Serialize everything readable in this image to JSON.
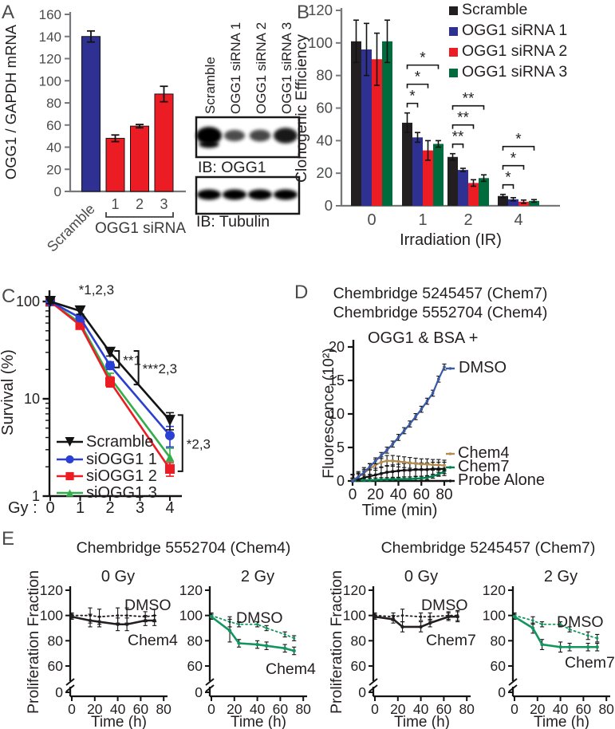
{
  "western_blot": {
    "lane_labels": [
      "Scramble",
      "OGG1 siRNA 1",
      "OGG1 siRNA 2",
      "OGG1 siRNA 3"
    ],
    "blots": [
      {
        "label": "IB: OGG1",
        "band_intensities": [
          1.0,
          0.4,
          0.45,
          0.8
        ]
      },
      {
        "label": "IB: Tubulin",
        "band_intensities": [
          1.0,
          1.0,
          1.0,
          1.0
        ]
      }
    ]
  },
  "colors": {
    "scramble_black": "#231f20",
    "sirna1_blue": "#2e3192",
    "sirna2_red": "#ec1c24",
    "sirna3_green": "#006b3c",
    "line_blue": "#2a3fd4",
    "line_green": "#33ae4b",
    "dmso_blue": "#3b5aa5",
    "chem4_tan": "#b38d4e",
    "chem7_green": "#00804d",
    "egy_green": "#12955e"
  },
  "chart_data": [
    {
      "panel": "A",
      "type": "bar",
      "ylabel": "OGG1 / GAPDH mRNA",
      "ylim": [
        0,
        160
      ],
      "yticks": [
        0,
        20,
        40,
        60,
        80,
        100,
        120,
        140,
        160
      ],
      "categories": [
        "Scramble",
        "1",
        "2",
        "3"
      ],
      "values": [
        140,
        48,
        59,
        88
      ],
      "errors": [
        5,
        3,
        1.5,
        7
      ],
      "bar_colors": [
        "#2e3192",
        "#ec1c24",
        "#ec1c24",
        "#ec1c24"
      ],
      "group_bracket": {
        "label": "OGG1 siRNA",
        "from": 1,
        "to": 3
      }
    },
    {
      "panel": "B",
      "type": "bar",
      "grouped": true,
      "ylabel": "Clonogenic Efficiency",
      "xlabel": "Irradiation (IR)",
      "ylim": [
        0,
        120
      ],
      "yticks": [
        0,
        20,
        40,
        60,
        80,
        100,
        120
      ],
      "categories": [
        "0",
        "1",
        "2",
        "4"
      ],
      "legend_position": "top-right",
      "series": [
        {
          "name": "Scramble",
          "color": "#231f20",
          "values": [
            101,
            51,
            30,
            6
          ],
          "errors": [
            13,
            6,
            2,
            1
          ]
        },
        {
          "name": "OGG1 siRNA 1",
          "color": "#2e3192",
          "values": [
            96,
            42,
            22,
            4
          ],
          "errors": [
            16,
            3,
            1,
            1
          ]
        },
        {
          "name": "OGG1 siRNA 2",
          "color": "#ec1c24",
          "values": [
            90,
            34,
            14,
            2.5
          ],
          "errors": [
            16,
            6,
            2,
            1
          ]
        },
        {
          "name": "OGG1 siRNA 3",
          "color": "#006b3c",
          "values": [
            101,
            38,
            17,
            3
          ],
          "errors": [
            13,
            2,
            2,
            0.8
          ]
        }
      ],
      "significance": [
        {
          "group_index": 1,
          "labels": [
            "*",
            "*",
            "*"
          ]
        },
        {
          "group_index": 2,
          "labels": [
            "**",
            "**",
            "**"
          ]
        },
        {
          "group_index": 3,
          "labels": [
            "*",
            "*",
            "*"
          ]
        }
      ]
    },
    {
      "panel": "C",
      "type": "line",
      "yscale": "log",
      "ylabel": "Survival (%)",
      "x_prefix": "Gy :",
      "yticks": [
        1,
        10,
        100
      ],
      "xticks": [
        0,
        1,
        2,
        3,
        4
      ],
      "x": [
        0,
        1,
        2,
        4
      ],
      "series": [
        {
          "name": "Scramble",
          "color": "#131313",
          "marker": "triangle-down",
          "values": [
            100,
            80,
            30,
            6
          ],
          "errors": [
            5,
            6,
            2.5,
            1.2
          ]
        },
        {
          "name": "siOGG1 1",
          "color": "#2a3fd4",
          "marker": "circle",
          "values": [
            100,
            68,
            22,
            4.2
          ],
          "errors": [
            4,
            5,
            2,
            1.0
          ]
        },
        {
          "name": "siOGG1 2",
          "color": "#ec1c24",
          "marker": "square",
          "values": [
            100,
            57,
            15,
            1.9
          ],
          "errors": [
            4,
            5,
            1.8,
            0.3
          ]
        },
        {
          "name": "siOGG1 3",
          "color": "#33ae4b",
          "marker": "triangle-up",
          "values": [
            100,
            60,
            16.5,
            2.5
          ],
          "errors": [
            4,
            5,
            1.8,
            0.6
          ]
        }
      ],
      "annotations": {
        "stars": [
          {
            "text": "*1,2,3",
            "x": 0.95,
            "y": 118
          }
        ],
        "brackets": [
          {
            "text": "**1",
            "x": 2.3,
            "y_top": 31,
            "y_bot": 21
          },
          {
            "text": "***2,3",
            "x": 2.95,
            "y_top": 31,
            "y_bot": 14
          },
          {
            "text": "*2,3",
            "x": 4.42,
            "y_top": 6.8,
            "y_bot": 1.8
          }
        ]
      }
    },
    {
      "panel": "D",
      "type": "line",
      "title_lines": [
        "Chembridge 5245457 (Chem7)",
        "Chembridge 5552704 (Chem4)"
      ],
      "inner_label": "OGG1 & BSA +",
      "ylabel": "Fluorescence (10²)",
      "xlabel": "Time (min)",
      "ylim": [
        0,
        20
      ],
      "yticks": [
        0,
        5,
        10,
        15,
        20
      ],
      "xticks": [
        0,
        20,
        40,
        60,
        80
      ],
      "x": [
        0,
        5,
        10,
        15,
        20,
        25,
        30,
        35,
        40,
        45,
        50,
        55,
        60,
        65,
        70,
        75,
        80
      ],
      "series": [
        {
          "name": "DMSO",
          "color": "#3b5aa5",
          "values": [
            0,
            0.6,
            1.3,
            2.1,
            3.0,
            3.8,
            4.6,
            5.5,
            6.5,
            7.5,
            8.5,
            9.6,
            10.7,
            11.9,
            13.1,
            15.2,
            17.0
          ],
          "errors": 0.45
        },
        {
          "name": "Chem4",
          "color": "#b38d4e",
          "values": [
            0.1,
            0.6,
            1.2,
            1.8,
            2.4,
            2.8,
            3.0,
            3.0,
            2.9,
            2.8,
            2.7,
            2.6,
            2.5,
            2.5,
            2.4,
            2.4,
            2.3
          ],
          "errors": 0.8
        },
        {
          "name": "Chem7",
          "color": "#00804d",
          "values": [
            0,
            0.05,
            0.1,
            0.1,
            0.15,
            0.2,
            0.2,
            0.25,
            0.25,
            0.3,
            0.3,
            0.35,
            0.4,
            0.5,
            0.7,
            1.0,
            1.4
          ],
          "errors": 0.3
        },
        {
          "name": "Probe Alone",
          "color": "#131313",
          "values": [
            0,
            0.2,
            0.5,
            0.7,
            0.9,
            1.1,
            1.3,
            1.4,
            1.5,
            1.6,
            1.6,
            1.7,
            1.7,
            1.7,
            1.8,
            1.8,
            1.8
          ],
          "errors": 1.0
        }
      ]
    },
    {
      "panel": "E",
      "type": "line-multiples",
      "group_titles": [
        "Chembridge 5552704 (Chem4)",
        "Chembridge 5245457 (Chem7)"
      ],
      "ylabel": "Proliferation Fraction",
      "xlabel": "Time (h)",
      "yticks": [
        0,
        60,
        80,
        100,
        120
      ],
      "xticks": [
        0,
        20,
        40,
        60,
        80
      ],
      "axis_break": true,
      "x": [
        0,
        16,
        24,
        40,
        48,
        64,
        72
      ],
      "subplots": [
        {
          "title": "0 Gy",
          "series": [
            {
              "name": "DMSO",
              "style": "dotted",
              "color": "#231f20",
              "values": [
                100,
                100,
                99,
                100,
                100,
                99,
                100
              ],
              "errors": [
                2,
                6,
                6,
                6,
                6,
                4,
                5
              ]
            },
            {
              "name": "Chem4",
              "style": "solid",
              "color": "#231f20",
              "values": [
                99,
                96,
                95,
                93,
                93,
                96,
                96
              ],
              "errors": [
                2,
                5,
                4,
                5,
                5,
                4,
                4
              ]
            }
          ]
        },
        {
          "title": "2 Gy",
          "series": [
            {
              "name": "DMSO",
              "style": "dotted",
              "color": "#12955e",
              "values": [
                100,
                95,
                93,
                93,
                90,
                85,
                82
              ],
              "errors": [
                2,
                4,
                2,
                2,
                2,
                2,
                2
              ]
            },
            {
              "name": "Chem4",
              "style": "solid",
              "color": "#12955e",
              "values": [
                99,
                88,
                78,
                77,
                76,
                74,
                72
              ],
              "errors": [
                2,
                9,
                3,
                3,
                3,
                3,
                3
              ]
            }
          ]
        },
        {
          "title": "0 Gy",
          "series": [
            {
              "name": "DMSO",
              "style": "dotted",
              "color": "#231f20",
              "values": [
                100,
                99,
                100,
                99,
                99,
                100,
                100
              ],
              "errors": [
                2,
                3,
                5,
                3,
                3,
                3,
                4
              ]
            },
            {
              "name": "Chem7",
              "style": "solid",
              "color": "#231f20",
              "values": [
                99,
                97,
                91,
                91,
                94,
                99,
                99
              ],
              "errors": [
                2,
                3,
                4,
                4,
                3,
                3,
                4
              ]
            }
          ]
        },
        {
          "title": "2 Gy",
          "series": [
            {
              "name": "DMSO",
              "style": "dotted",
              "color": "#12955e",
              "values": [
                100,
                96,
                93,
                93,
                89,
                84,
                82
              ],
              "errors": [
                2,
                3,
                2,
                2,
                2,
                3,
                3
              ]
            },
            {
              "name": "Chem7",
              "style": "solid",
              "color": "#12955e",
              "values": [
                99,
                90,
                77,
                75,
                75,
                75,
                75
              ],
              "errors": [
                2,
                4,
                4,
                4,
                3,
                3,
                3
              ]
            }
          ]
        }
      ]
    }
  ]
}
